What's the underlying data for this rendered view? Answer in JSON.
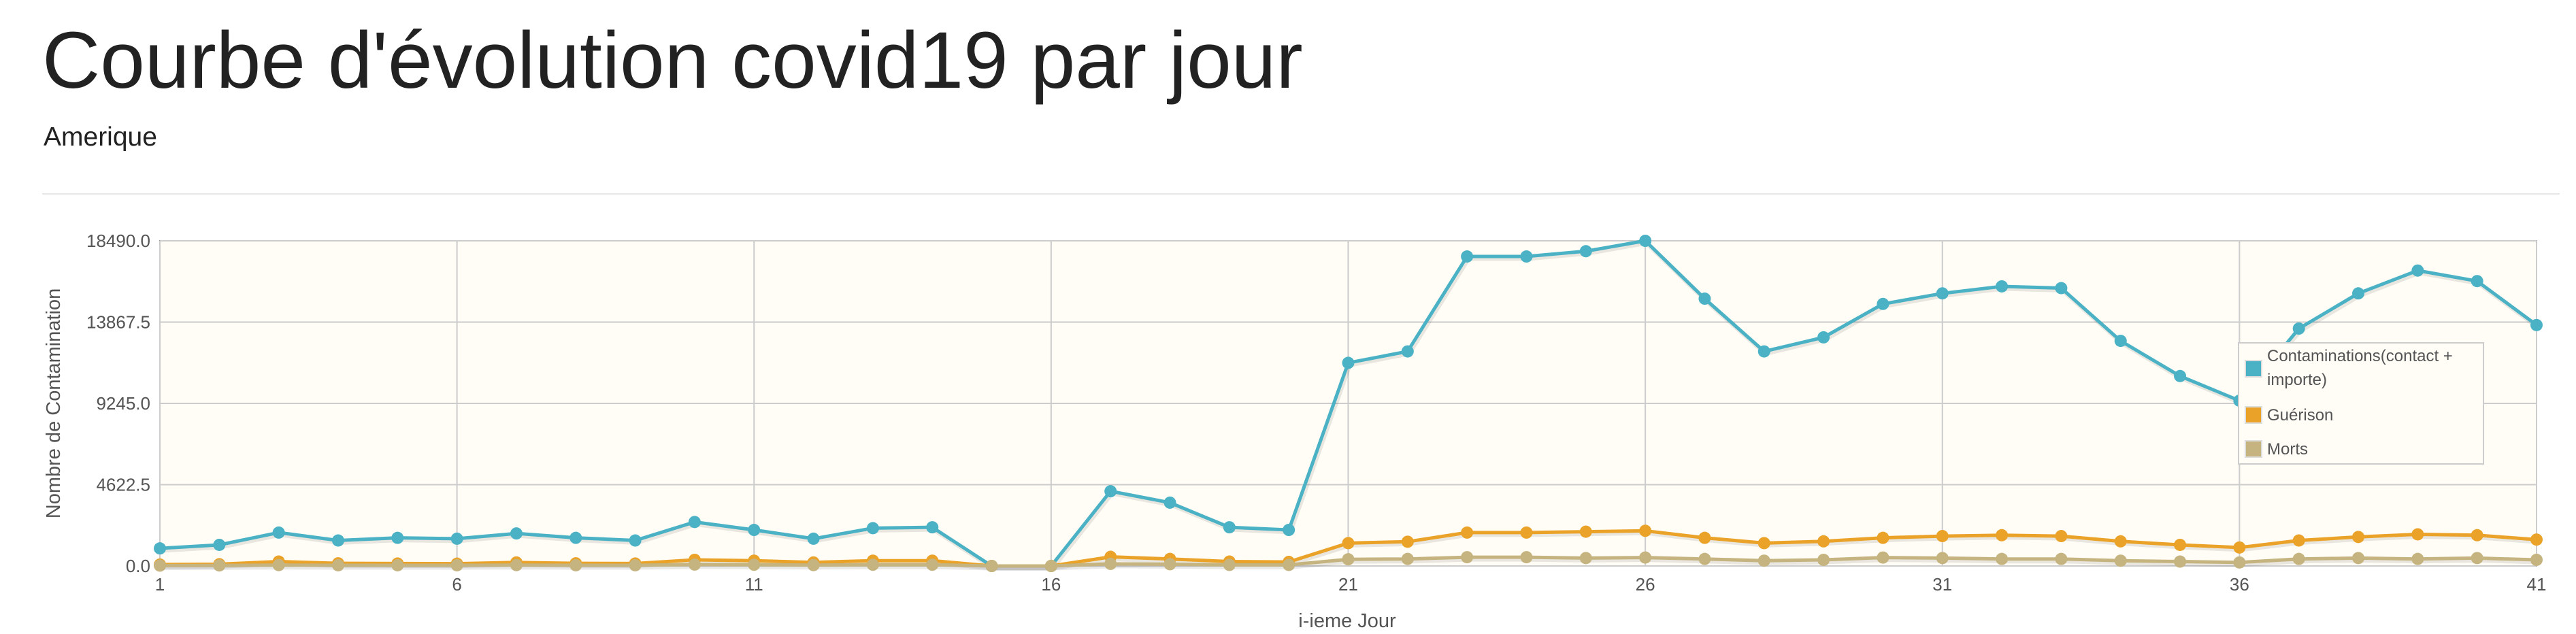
{
  "page": {
    "title": "Courbe d'évolution covid19 par jour",
    "subtitle": "Amerique"
  },
  "chart_data": {
    "type": "line",
    "xlabel": "i-ieme Jour",
    "ylabel": "Nombre de Contamination",
    "x": [
      1,
      2,
      3,
      4,
      5,
      6,
      7,
      8,
      9,
      10,
      11,
      12,
      13,
      14,
      15,
      16,
      17,
      18,
      19,
      20,
      21,
      22,
      23,
      24,
      25,
      26,
      27,
      28,
      29,
      30,
      31,
      32,
      33,
      34,
      35,
      36,
      37,
      38,
      39,
      40,
      41
    ],
    "xlim": [
      1,
      41
    ],
    "ylim": [
      0,
      18490
    ],
    "x_ticks": [
      1,
      6,
      11,
      16,
      21,
      26,
      31,
      36,
      41
    ],
    "y_ticks": [
      "0.0",
      "4622.5",
      "9245.0",
      "13867.5",
      "18490.0"
    ],
    "grid": true,
    "legend_position": "right",
    "series": [
      {
        "name": "Contaminations(contact + importe)",
        "color": "#4bb2c5",
        "values": [
          1000,
          1200,
          1900,
          1450,
          1600,
          1550,
          1850,
          1600,
          1450,
          2500,
          2050,
          1550,
          2150,
          2200,
          0,
          0,
          4250,
          3600,
          2200,
          2050,
          11550,
          12200,
          17600,
          17600,
          17900,
          18490,
          15200,
          12200,
          13000,
          14900,
          15500,
          15900,
          15800,
          12800,
          10800,
          9400,
          13500,
          15500,
          16800,
          16200,
          13700
        ]
      },
      {
        "name": "Guérison",
        "color": "#eaa228",
        "values": [
          80,
          100,
          250,
          150,
          140,
          130,
          200,
          150,
          140,
          350,
          300,
          200,
          300,
          300,
          0,
          0,
          520,
          400,
          250,
          230,
          1300,
          1380,
          1900,
          1900,
          1950,
          2000,
          1600,
          1300,
          1400,
          1600,
          1700,
          1750,
          1700,
          1400,
          1200,
          1050,
          1450,
          1650,
          1800,
          1750,
          1500
        ]
      },
      {
        "name": "Morts",
        "color": "#c5b47f",
        "values": [
          20,
          30,
          50,
          40,
          40,
          40,
          50,
          40,
          40,
          80,
          70,
          50,
          70,
          70,
          0,
          0,
          120,
          100,
          60,
          60,
          380,
          400,
          500,
          500,
          450,
          480,
          400,
          300,
          350,
          480,
          450,
          400,
          400,
          300,
          250,
          200,
          400,
          450,
          400,
          450,
          350
        ]
      }
    ]
  }
}
